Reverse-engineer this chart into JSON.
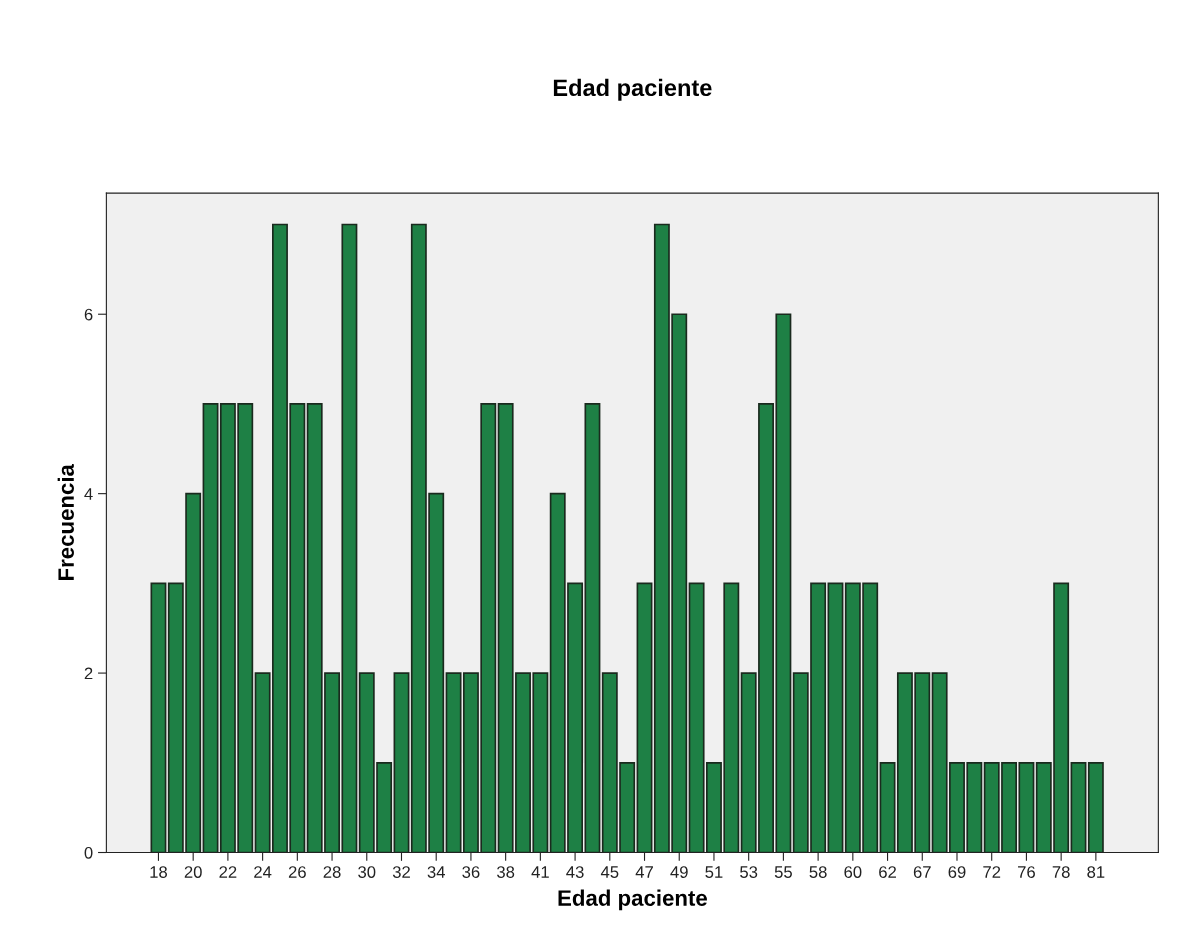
{
  "chart_data": {
    "type": "bar",
    "title": "Edad paciente",
    "xlabel": "Edad paciente",
    "ylabel": "Frecuencia",
    "categories": [
      "18",
      null,
      "20",
      null,
      "22",
      null,
      "24",
      null,
      "26",
      null,
      "28",
      null,
      "30",
      null,
      "32",
      null,
      "34",
      null,
      "36",
      null,
      "38",
      null,
      "41",
      null,
      "43",
      null,
      "45",
      null,
      "47",
      null,
      "49",
      null,
      "51",
      null,
      "53",
      null,
      "55",
      null,
      "58",
      null,
      "60",
      null,
      "62",
      null,
      "67",
      null,
      "69",
      null,
      "72",
      null,
      "76",
      null,
      "78",
      null,
      "81"
    ],
    "values": [
      3,
      3,
      4,
      5,
      5,
      5,
      2,
      7,
      5,
      5,
      2,
      7,
      2,
      1,
      2,
      7,
      4,
      2,
      2,
      5,
      5,
      2,
      2,
      4,
      3,
      5,
      2,
      1,
      3,
      7,
      6,
      3,
      1,
      3,
      2,
      5,
      6,
      2,
      3,
      3,
      3,
      3,
      1,
      2,
      2,
      2,
      1,
      1,
      1,
      1,
      1,
      1,
      3,
      1,
      1
    ],
    "color": "#1e8045",
    "ylim": [
      0,
      7.35
    ],
    "yticks": [
      0,
      2,
      4,
      6
    ],
    "grid": false,
    "legend": false
  }
}
